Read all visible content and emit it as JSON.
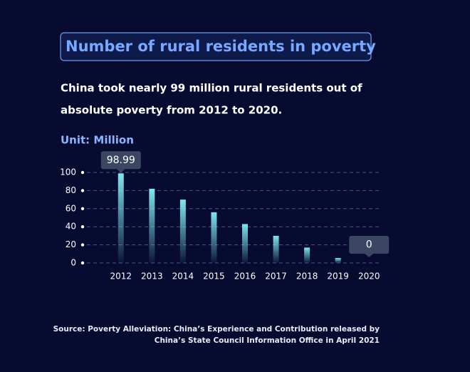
{
  "chart_data": {
    "type": "bar",
    "title": "Number of rural residents in poverty",
    "subtitle": [
      "China took nearly 99 million rural residents out of",
      "absolute poverty from 2012 to 2020."
    ],
    "unit_label": "Unit: Million",
    "categories": [
      "2012",
      "2013",
      "2014",
      "2015",
      "2016",
      "2017",
      "2018",
      "2019",
      "2020"
    ],
    "values": [
      98.99,
      82,
      70,
      56,
      43,
      30,
      17,
      5.5,
      0
    ],
    "value_labels": [
      "98.99",
      null,
      null,
      null,
      null,
      null,
      null,
      null,
      "0"
    ],
    "color": "#7fe6f0",
    "ylim": [
      0,
      100
    ],
    "yticks": [
      0,
      20,
      40,
      60,
      80,
      100
    ],
    "grid": true,
    "source": [
      "Source: Poverty Alleviation: China’s Experience and Contribution released by",
      "China’s State Council Information Office in April 2021"
    ]
  }
}
